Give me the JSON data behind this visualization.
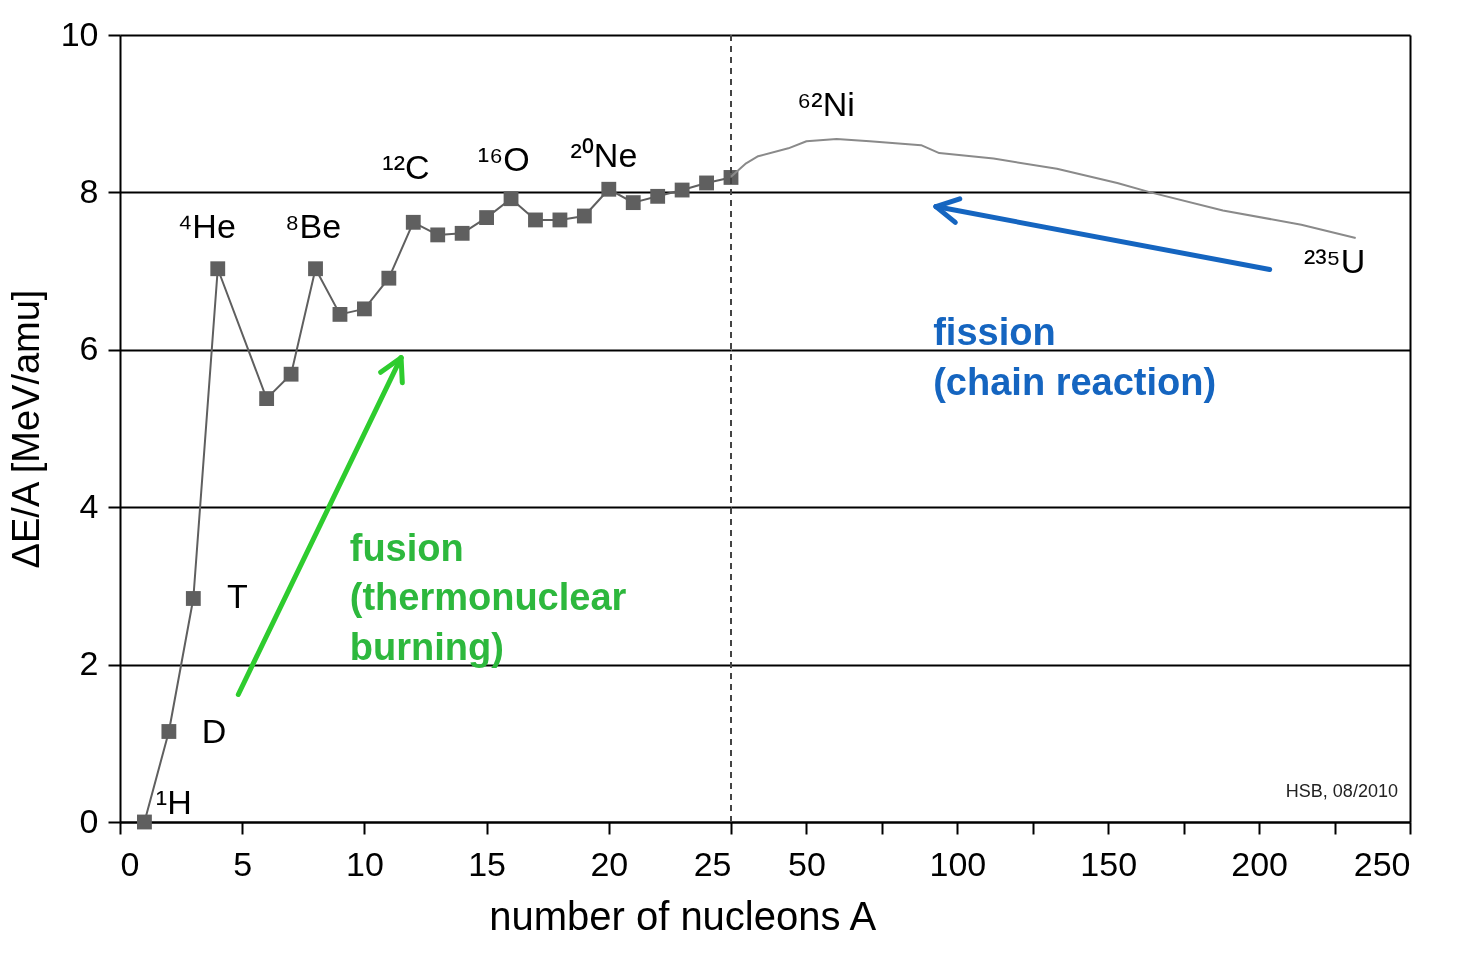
{
  "chart_data": [
    {
      "type": "line",
      "xlabel": "number of nucleons  A",
      "ylabel": "ΔE/A  [MeV/amu]",
      "x": [
        1,
        2,
        3,
        4,
        6,
        7,
        8,
        9,
        10,
        11,
        12,
        13,
        14,
        15,
        16,
        17,
        18,
        19,
        20,
        21,
        22,
        23,
        24,
        25
      ],
      "series": [
        {
          "color": "#5f5f5f",
          "values": [
            0.0,
            1.15,
            2.84,
            7.03,
            5.38,
            5.69,
            7.03,
            6.45,
            6.52,
            6.91,
            7.62,
            7.46,
            7.48,
            7.68,
            7.92,
            7.65,
            7.65,
            7.7,
            8.04,
            7.87,
            7.95,
            8.03,
            8.12,
            8.19
          ]
        }
      ],
      "marker": "square",
      "xlim": [
        0,
        25
      ],
      "xticks": [
        0,
        5,
        10,
        15,
        20,
        25
      ],
      "ylim": [
        0,
        10
      ],
      "yticks": [
        0,
        2,
        4,
        6,
        8,
        10
      ],
      "grid": "y",
      "annotations": [
        "¹H",
        "D",
        "T",
        "⁴He",
        "⁸Be",
        "¹²C",
        "¹⁶O",
        "²⁰Ne",
        "fusion\n(thermonuclear\nburning)"
      ]
    },
    {
      "type": "line",
      "series": [
        {
          "color": "#8a8a8a",
          "x": [
            25,
            30,
            34,
            44,
            50,
            60,
            71,
            88,
            94,
            112,
            133,
            153,
            164,
            188,
            214,
            232
          ],
          "values": [
            8.2,
            8.37,
            8.46,
            8.56,
            8.65,
            8.68,
            8.65,
            8.6,
            8.5,
            8.43,
            8.3,
            8.12,
            8.0,
            7.77,
            7.59,
            7.42
          ]
        }
      ],
      "marker": "none",
      "xlim": [
        25,
        250
      ],
      "xticks": [
        50,
        {
          "value": 75,
          "label": null
        },
        100,
        {
          "value": 125,
          "label": null
        },
        150,
        {
          "value": 175,
          "label": null
        },
        200,
        {
          "value": 225,
          "label": null
        },
        250
      ],
      "ylim": [
        0,
        10
      ],
      "yticks": [
        0,
        2,
        4,
        6,
        8,
        10
      ],
      "grid": "y",
      "tick_labels": "x",
      "ref_lines": [
        {
          "axis": "x",
          "value": 25,
          "line_style": "dashed",
          "color": "#444444"
        }
      ],
      "annotations": [
        "⁶²Ni",
        "²³⁵U",
        "fission\n(chain reaction)",
        "HSB, 08/2010"
      ]
    }
  ]
}
